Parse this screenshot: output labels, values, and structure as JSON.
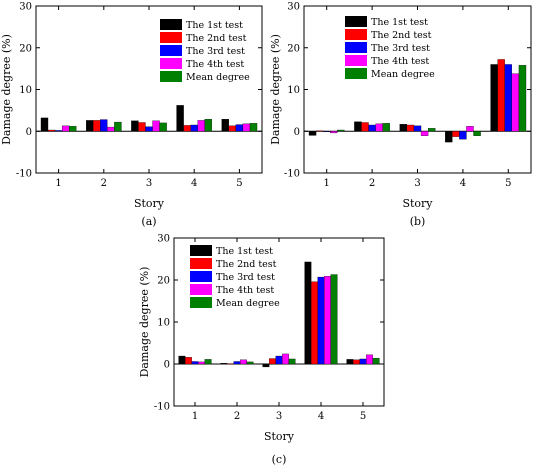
{
  "chart_data": [
    {
      "type": "bar",
      "panel_label": "(a)",
      "categories": [
        "1",
        "2",
        "3",
        "4",
        "5"
      ],
      "series": [
        {
          "name": "The 1st test",
          "color": "#000000",
          "values": [
            3.2,
            2.6,
            2.5,
            6.2,
            2.9
          ]
        },
        {
          "name": "The 2nd test",
          "color": "#ff0000",
          "values": [
            0.3,
            2.6,
            2.1,
            1.4,
            1.3
          ]
        },
        {
          "name": "The 3rd test",
          "color": "#0000ff",
          "values": [
            0.2,
            2.8,
            1.1,
            1.5,
            1.6
          ]
        },
        {
          "name": "The 4th test",
          "color": "#ff00ff",
          "values": [
            1.3,
            1.0,
            2.5,
            2.6,
            1.8
          ]
        },
        {
          "name": "Mean degree",
          "color": "#008000",
          "values": [
            1.2,
            2.2,
            2.0,
            2.9,
            1.9
          ]
        }
      ],
      "xlabel": "Story",
      "ylabel": "Damage degree (%)",
      "ylim": [
        -10,
        30
      ],
      "yticks": [
        -10,
        0,
        10,
        20,
        30
      ],
      "legend_position": "top-right"
    },
    {
      "type": "bar",
      "panel_label": "(b)",
      "categories": [
        "1",
        "2",
        "3",
        "4",
        "5"
      ],
      "series": [
        {
          "name": "The 1st test",
          "color": "#000000",
          "values": [
            -1.0,
            2.3,
            1.7,
            -2.6,
            16.0
          ]
        },
        {
          "name": "The 2nd test",
          "color": "#ff0000",
          "values": [
            0.1,
            2.1,
            1.5,
            -1.3,
            17.2
          ]
        },
        {
          "name": "The 3rd test",
          "color": "#0000ff",
          "values": [
            0.0,
            1.5,
            1.3,
            -1.9,
            16.0
          ]
        },
        {
          "name": "The 4th test",
          "color": "#ff00ff",
          "values": [
            -0.4,
            1.8,
            -1.1,
            1.2,
            13.8
          ]
        },
        {
          "name": "Mean degree",
          "color": "#008000",
          "values": [
            0.3,
            1.9,
            0.7,
            -1.1,
            15.8
          ]
        }
      ],
      "xlabel": "Story",
      "ylabel": "Damage degree (%)",
      "ylim": [
        -10,
        30
      ],
      "yticks": [
        -10,
        0,
        10,
        20,
        30
      ],
      "legend_position": "top-right"
    },
    {
      "type": "bar",
      "panel_label": "(c)",
      "categories": [
        "1",
        "2",
        "3",
        "4",
        "5"
      ],
      "series": [
        {
          "name": "The 1st test",
          "color": "#000000",
          "values": [
            1.9,
            0.2,
            -0.7,
            24.3,
            1.1
          ]
        },
        {
          "name": "The 2nd test",
          "color": "#ff0000",
          "values": [
            1.6,
            0.1,
            1.3,
            19.6,
            1.0
          ]
        },
        {
          "name": "The 3rd test",
          "color": "#0000ff",
          "values": [
            0.6,
            0.6,
            1.9,
            20.7,
            1.2
          ]
        },
        {
          "name": "The 4th test",
          "color": "#ff00ff",
          "values": [
            0.5,
            1.0,
            2.4,
            20.9,
            2.2
          ]
        },
        {
          "name": "Mean degree",
          "color": "#008000",
          "values": [
            1.1,
            0.5,
            1.2,
            21.3,
            1.4
          ]
        }
      ],
      "xlabel": "Story",
      "ylabel": "Damage degree (%)",
      "ylim": [
        -10,
        30
      ],
      "yticks": [
        -10,
        0,
        10,
        20,
        30
      ],
      "legend_position": "top-left"
    }
  ]
}
